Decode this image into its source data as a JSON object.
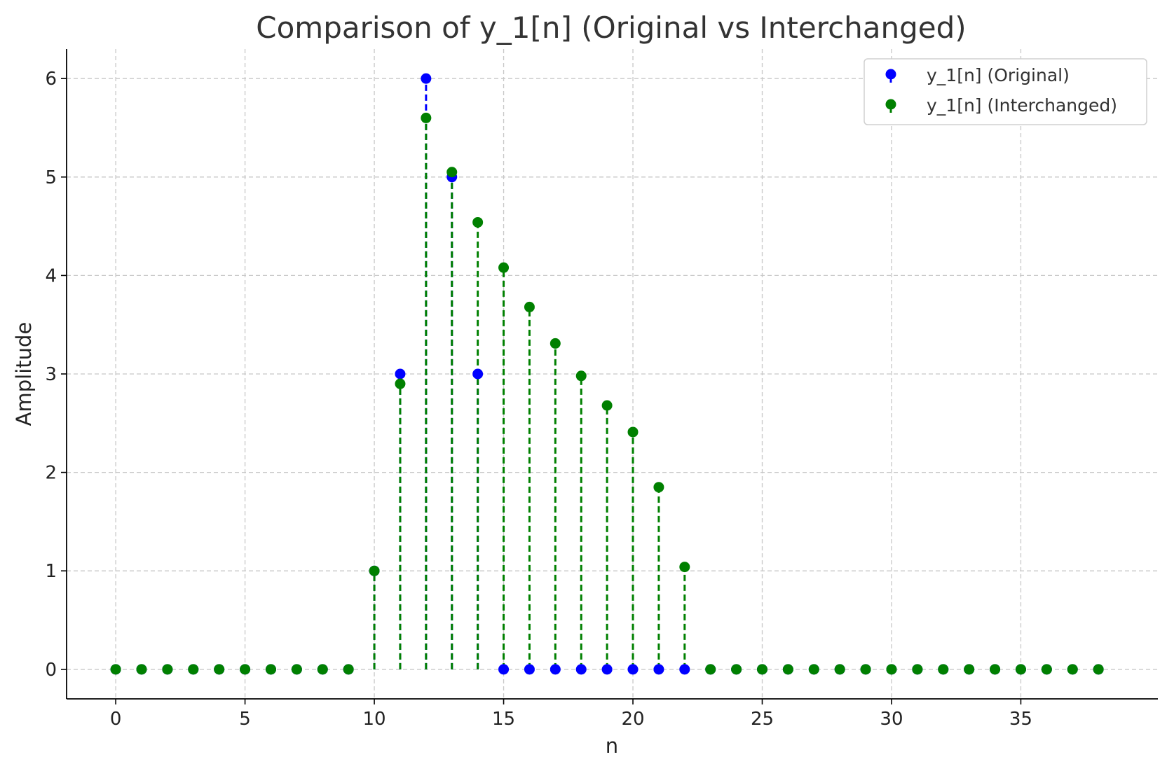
{
  "chart_data": {
    "type": "scatter",
    "title": "Comparison of y_1[n] (Original vs Interchanged)",
    "xlabel": "n",
    "ylabel": "Amplitude",
    "xlim": [
      -1.9,
      40.3
    ],
    "ylim": [
      -0.3,
      6.3
    ],
    "xticks": [
      0,
      5,
      10,
      15,
      20,
      25,
      30,
      35
    ],
    "yticks": [
      0,
      1,
      2,
      3,
      4,
      5,
      6
    ],
    "grid": true,
    "legend_position": "top-right",
    "x": [
      0,
      1,
      2,
      3,
      4,
      5,
      6,
      7,
      8,
      9,
      10,
      11,
      12,
      13,
      14,
      15,
      16,
      17,
      18,
      19,
      20,
      21,
      22,
      23,
      24,
      25,
      26,
      27,
      28,
      29,
      30,
      31,
      32,
      33,
      34,
      35,
      36,
      37,
      38
    ],
    "series": [
      {
        "name": "y_1[n] (Original)",
        "color": "#0000ff",
        "marker": "stem-dashed",
        "values": [
          0,
          0,
          0,
          0,
          0,
          0,
          0,
          0,
          0,
          0,
          1,
          3,
          6,
          5,
          3,
          0,
          0,
          0,
          0,
          0,
          0,
          0,
          0,
          0,
          0,
          0,
          0,
          0,
          0,
          0,
          0,
          0,
          0,
          0,
          0,
          0,
          0,
          0,
          0
        ]
      },
      {
        "name": "y_1[n] (Interchanged)",
        "color": "#008000",
        "marker": "stem-dashed",
        "values": [
          0,
          0,
          0,
          0,
          0,
          0,
          0,
          0,
          0,
          0,
          1,
          2.9,
          5.6,
          5.05,
          4.54,
          4.08,
          3.68,
          3.31,
          2.98,
          2.68,
          2.41,
          1.85,
          1.04,
          0,
          0,
          0,
          0,
          0,
          0,
          0,
          0,
          0,
          0,
          0,
          0,
          0,
          0,
          0,
          0
        ]
      }
    ]
  }
}
